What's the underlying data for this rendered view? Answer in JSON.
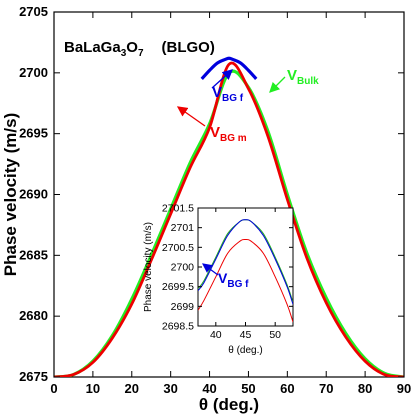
{
  "chart_data": [
    {
      "type": "line",
      "xlabel": "θ (deg.)",
      "ylabel": "Phase velocity  (m/s)",
      "xlim": [
        0,
        90
      ],
      "ylim": [
        2675,
        2705
      ],
      "xticks": [
        "0",
        "10",
        "20",
        "30",
        "40",
        "50",
        "60",
        "70",
        "80",
        "90"
      ],
      "yticks": [
        "2675",
        "2680",
        "2685",
        "2690",
        "2695",
        "2700",
        "2705"
      ],
      "material_label": {
        "formula_main": "BaLaGa",
        "formula_sub1": "3",
        "formula_mid": "O",
        "formula_sub2": "7",
        "abbrev": "(BLGO)"
      },
      "series": [
        {
          "label_main": "V",
          "label_sub": "Bulk",
          "color": "#22ee22",
          "x": [
            0,
            5,
            10,
            15,
            20,
            25,
            30,
            35,
            40,
            45,
            50,
            55,
            60,
            65,
            70,
            75,
            80,
            85,
            90
          ],
          "y": [
            2675.0,
            2675.2,
            2676.3,
            2678.4,
            2681.4,
            2685.0,
            2688.8,
            2692.6,
            2695.8,
            2700.0,
            2698.8,
            2695.2,
            2690.0,
            2685.2,
            2681.5,
            2678.6,
            2676.5,
            2675.3,
            2675.0
          ]
        },
        {
          "label_main": "V",
          "label_sub": "BG f",
          "color": "#0000dd",
          "x": [
            38,
            40,
            42,
            44,
            45,
            46,
            48,
            50,
            52
          ],
          "y": [
            2699.5,
            2700.2,
            2700.8,
            2701.1,
            2701.2,
            2701.1,
            2700.8,
            2700.2,
            2699.5
          ]
        },
        {
          "label_main": "V",
          "label_sub": "BG m",
          "color": "#ee0000",
          "x": [
            0,
            5,
            10,
            15,
            20,
            25,
            30,
            35,
            40,
            45,
            50,
            55,
            60,
            65,
            70,
            75,
            80,
            85,
            90
          ],
          "y": [
            2675.0,
            2675.2,
            2676.2,
            2678.2,
            2681.0,
            2684.6,
            2688.4,
            2692.2,
            2695.5,
            2700.7,
            2698.7,
            2694.8,
            2689.6,
            2684.8,
            2681.1,
            2678.3,
            2676.3,
            2675.2,
            2675.0
          ]
        }
      ]
    },
    {
      "type": "line",
      "inset": true,
      "xlabel": "θ (deg.)",
      "ylabel": "Phase velocity (m/s)",
      "xlim": [
        37,
        53
      ],
      "ylim": [
        2698.5,
        2701.5
      ],
      "xticks": [
        "40",
        "45",
        "50"
      ],
      "yticks": [
        "2698.5",
        "2699",
        "2699.5",
        "2700",
        "2700.5",
        "2701",
        "2701.5"
      ],
      "annotation": {
        "main": "V",
        "sub": "BG f"
      },
      "series": [
        {
          "color": "#22aa22",
          "x": [
            37,
            38,
            40,
            42,
            44,
            45,
            46,
            48,
            50,
            52,
            53
          ],
          "y": [
            2699.45,
            2699.65,
            2700.25,
            2700.85,
            2701.15,
            2701.2,
            2701.15,
            2700.85,
            2700.25,
            2699.55,
            2699.1
          ]
        },
        {
          "color": "#0000dd",
          "x": [
            37,
            38,
            40,
            42,
            44,
            45,
            46,
            48,
            50,
            52,
            53
          ],
          "y": [
            2699.4,
            2699.6,
            2700.2,
            2700.8,
            2701.15,
            2701.2,
            2701.15,
            2700.8,
            2700.2,
            2699.5,
            2699.05
          ]
        },
        {
          "color": "#ee0000",
          "x": [
            37,
            38,
            40,
            42,
            44,
            45,
            46,
            48,
            50,
            52,
            53
          ],
          "y": [
            2698.9,
            2699.15,
            2699.75,
            2700.35,
            2700.65,
            2700.7,
            2700.65,
            2700.35,
            2699.75,
            2699.05,
            2698.6
          ]
        }
      ]
    }
  ]
}
